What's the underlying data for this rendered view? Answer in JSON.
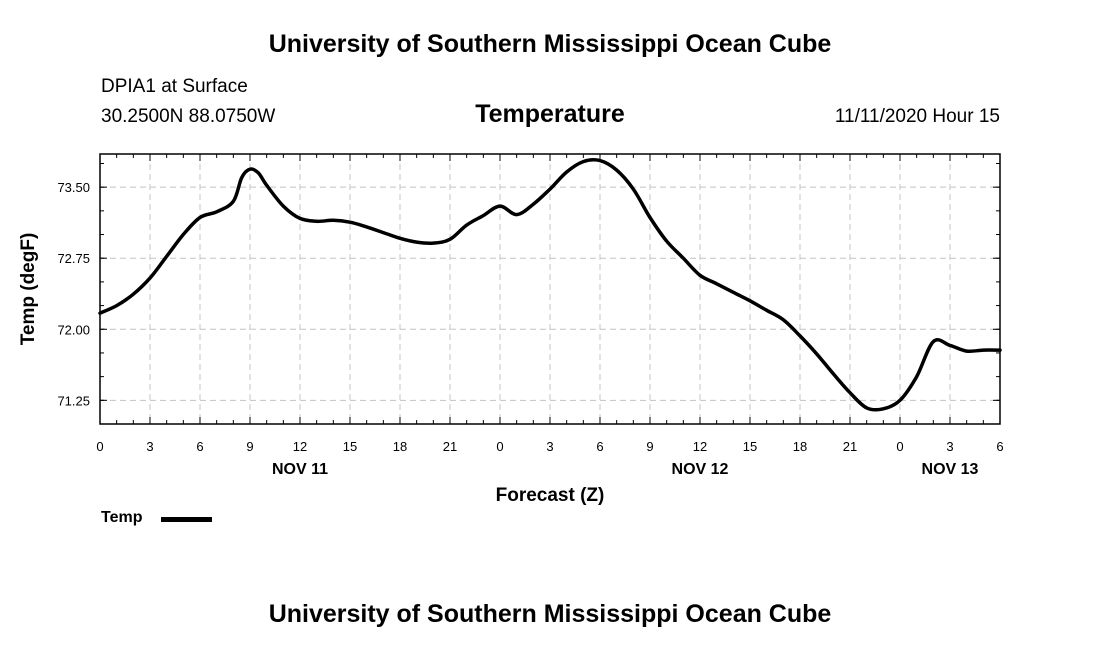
{
  "header": {
    "top_title": "University of Southern Mississippi Ocean Cube",
    "station": "DPIA1 at Surface",
    "coords": "30.2500N 88.0750W",
    "chart_title": "Temperature",
    "issued": "11/11/2020 Hour 15"
  },
  "footer": {
    "bottom_title": "University of Southern Mississippi Ocean Cube"
  },
  "legend": {
    "label": "Temp",
    "color": "#000000"
  },
  "chart_data": {
    "type": "line",
    "title": "Temperature",
    "xlabel": "Forecast (Z)",
    "ylabel": "Temp (degF)",
    "xlim": [
      0,
      54
    ],
    "ylim": [
      71.0,
      73.85
    ],
    "grid": true,
    "x_ticks": [
      0,
      3,
      6,
      9,
      12,
      15,
      18,
      21,
      24,
      27,
      30,
      33,
      36,
      39,
      42,
      45,
      48,
      51,
      54
    ],
    "x_tick_labels": [
      "0",
      "3",
      "6",
      "9",
      "12",
      "15",
      "18",
      "21",
      "0",
      "3",
      "6",
      "9",
      "12",
      "15",
      "18",
      "21",
      "0",
      "3",
      "6"
    ],
    "date_labels": [
      {
        "x": 12,
        "label": "NOV 11"
      },
      {
        "x": 36,
        "label": "NOV 12"
      },
      {
        "x": 51,
        "label": "NOV 13"
      }
    ],
    "y_ticks": [
      71.25,
      72.0,
      72.75,
      73.5
    ],
    "y_tick_labels": [
      "71.25",
      "72.00",
      "72.75",
      "73.50"
    ],
    "y_minor_step": 0.25,
    "series": [
      {
        "name": "Temp",
        "color": "#000000",
        "x": [
          0,
          1,
          2,
          3,
          4,
          5,
          6,
          7,
          8,
          8.5,
          9,
          9.5,
          10,
          11,
          12,
          13,
          14,
          15,
          16,
          17,
          18,
          19,
          20,
          21,
          22,
          23,
          24,
          25,
          26,
          27,
          28,
          29,
          30,
          31,
          32,
          33,
          34,
          35,
          36,
          37,
          38,
          39,
          40,
          41,
          42,
          43,
          44,
          45,
          46,
          47,
          48,
          49,
          50,
          51,
          52,
          53,
          54
        ],
        "values": [
          72.17,
          72.25,
          72.37,
          72.54,
          72.77,
          73.0,
          73.18,
          73.24,
          73.35,
          73.6,
          73.69,
          73.65,
          73.52,
          73.3,
          73.17,
          73.14,
          73.15,
          73.13,
          73.08,
          73.02,
          72.96,
          72.92,
          72.91,
          72.95,
          73.1,
          73.2,
          73.3,
          73.21,
          73.32,
          73.48,
          73.66,
          73.77,
          73.78,
          73.68,
          73.48,
          73.18,
          72.93,
          72.75,
          72.57,
          72.48,
          72.39,
          72.3,
          72.2,
          72.1,
          71.93,
          71.74,
          71.53,
          71.33,
          71.17,
          71.16,
          71.25,
          71.5,
          71.87,
          71.83,
          71.77,
          71.78,
          71.78
        ]
      }
    ]
  }
}
